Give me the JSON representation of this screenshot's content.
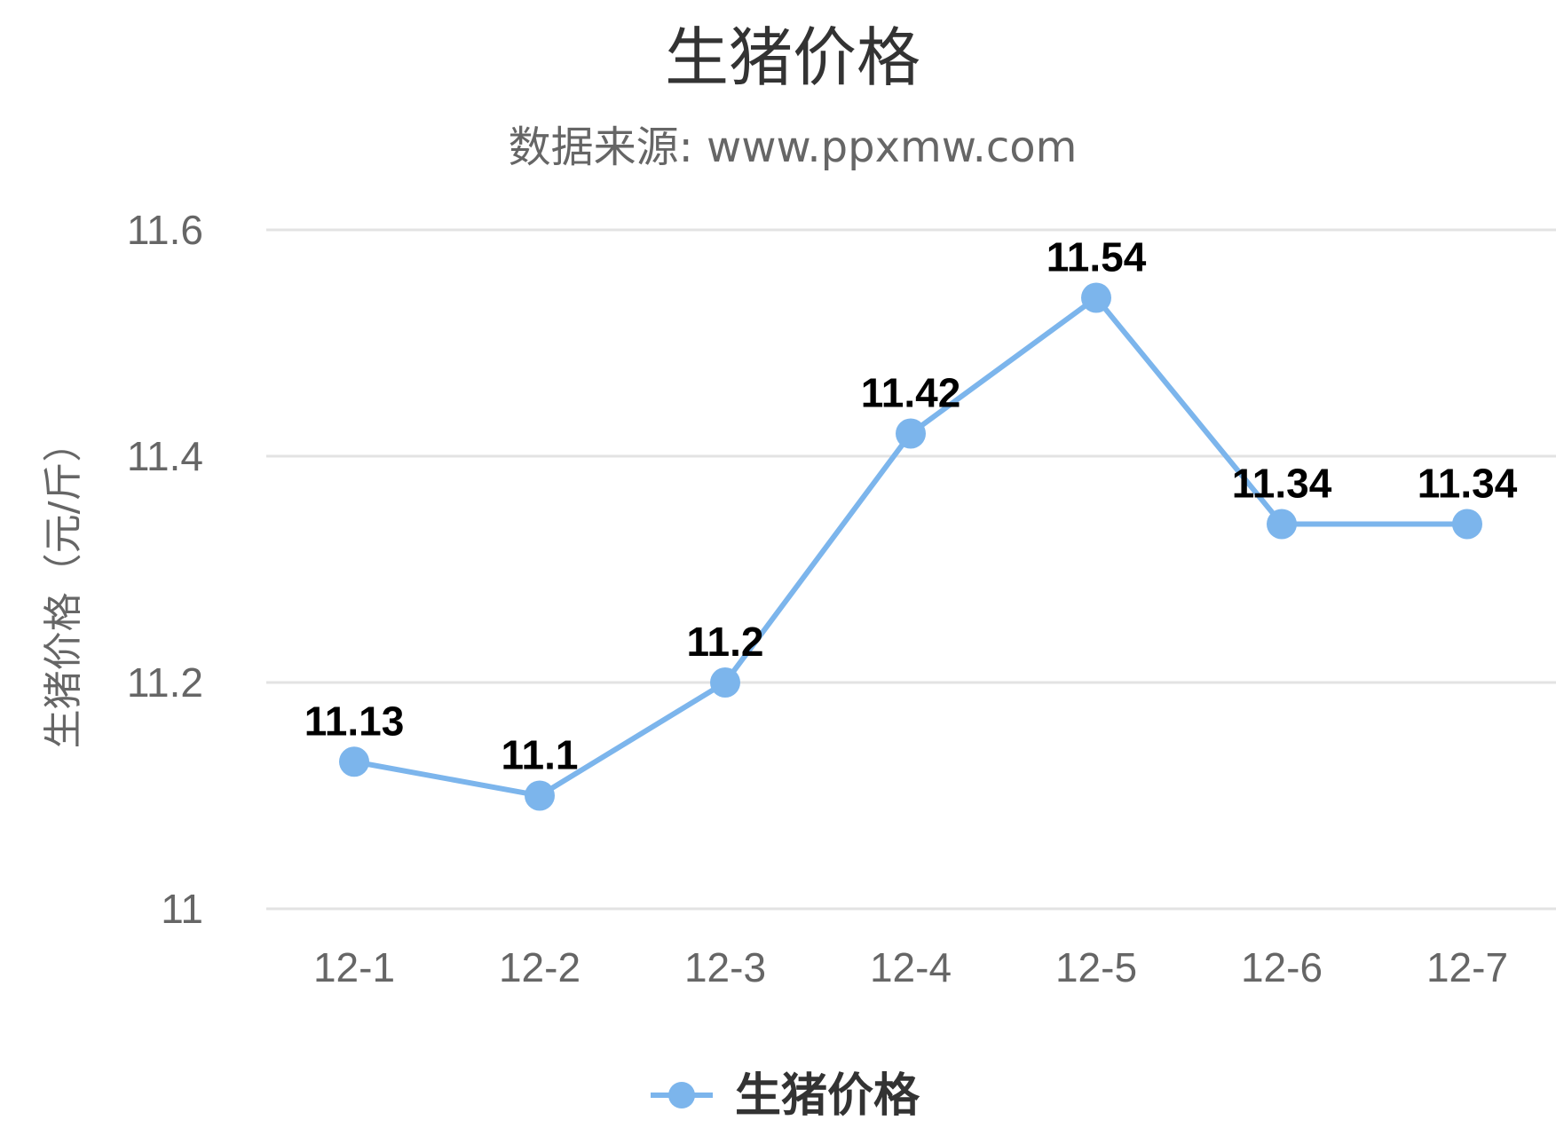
{
  "chart_data": {
    "type": "line",
    "title": "生猪价格",
    "subtitle": "数据来源: www.ppxmw.com",
    "xlabel": "",
    "ylabel": "生猪价格（元/斤）",
    "categories": [
      "12-1",
      "12-2",
      "12-3",
      "12-4",
      "12-5",
      "12-6",
      "12-7"
    ],
    "series": [
      {
        "name": "生猪价格",
        "values": [
          11.13,
          11.1,
          11.2,
          11.42,
          11.54,
          11.34,
          11.34
        ],
        "labels": [
          "11.13",
          "11.1",
          "11.2",
          "11.42",
          "11.54",
          "11.34",
          "11.34"
        ],
        "color": "#7cb5ec"
      }
    ],
    "ylim": [
      11,
      11.6
    ],
    "yticks": [
      "11",
      "11.2",
      "11.4",
      "11.6"
    ],
    "grid": true,
    "legend_position": "bottom"
  }
}
